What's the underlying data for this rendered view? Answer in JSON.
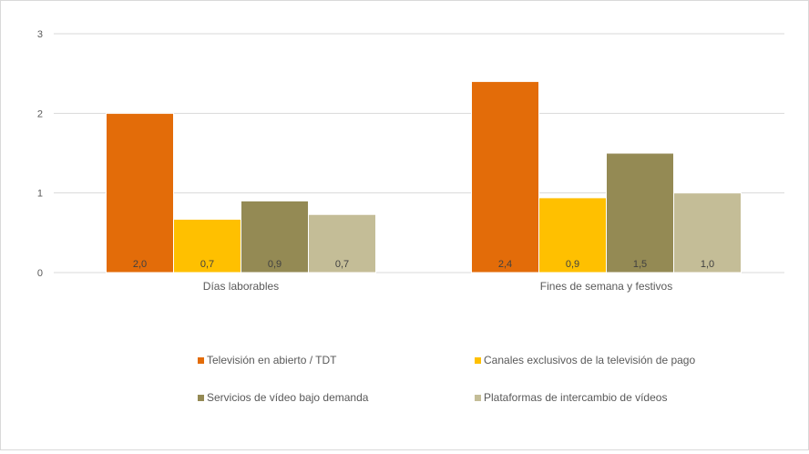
{
  "chart_data": {
    "type": "bar",
    "title": "",
    "xlabel": "",
    "ylabel": "",
    "ylim": [
      0,
      3
    ],
    "yticks": [
      "0",
      "1",
      "2",
      "3"
    ],
    "grid": true,
    "legend_position": "bottom",
    "categories": [
      "Días laborables",
      "Fines de semana y festivos"
    ],
    "series": [
      {
        "name": "Televisión en abierto / TDT",
        "color": "#E36C09",
        "values": [
          2.0,
          2.4
        ],
        "labels": [
          "2,0",
          "2,4"
        ]
      },
      {
        "name": "Canales exclusivos de la televisión de pago",
        "color": "#FFC000",
        "values": [
          0.67,
          0.94
        ],
        "labels": [
          "0,7",
          "0,9"
        ]
      },
      {
        "name": "Servicios de vídeo bajo demanda",
        "color": "#948A54",
        "values": [
          0.9,
          1.5
        ],
        "labels": [
          "0,9",
          "1,5"
        ]
      },
      {
        "name": "Plataformas de intercambio de vídeos",
        "color": "#C4BD97",
        "values": [
          0.73,
          1.0
        ],
        "labels": [
          "0,7",
          "1,0"
        ]
      }
    ]
  }
}
